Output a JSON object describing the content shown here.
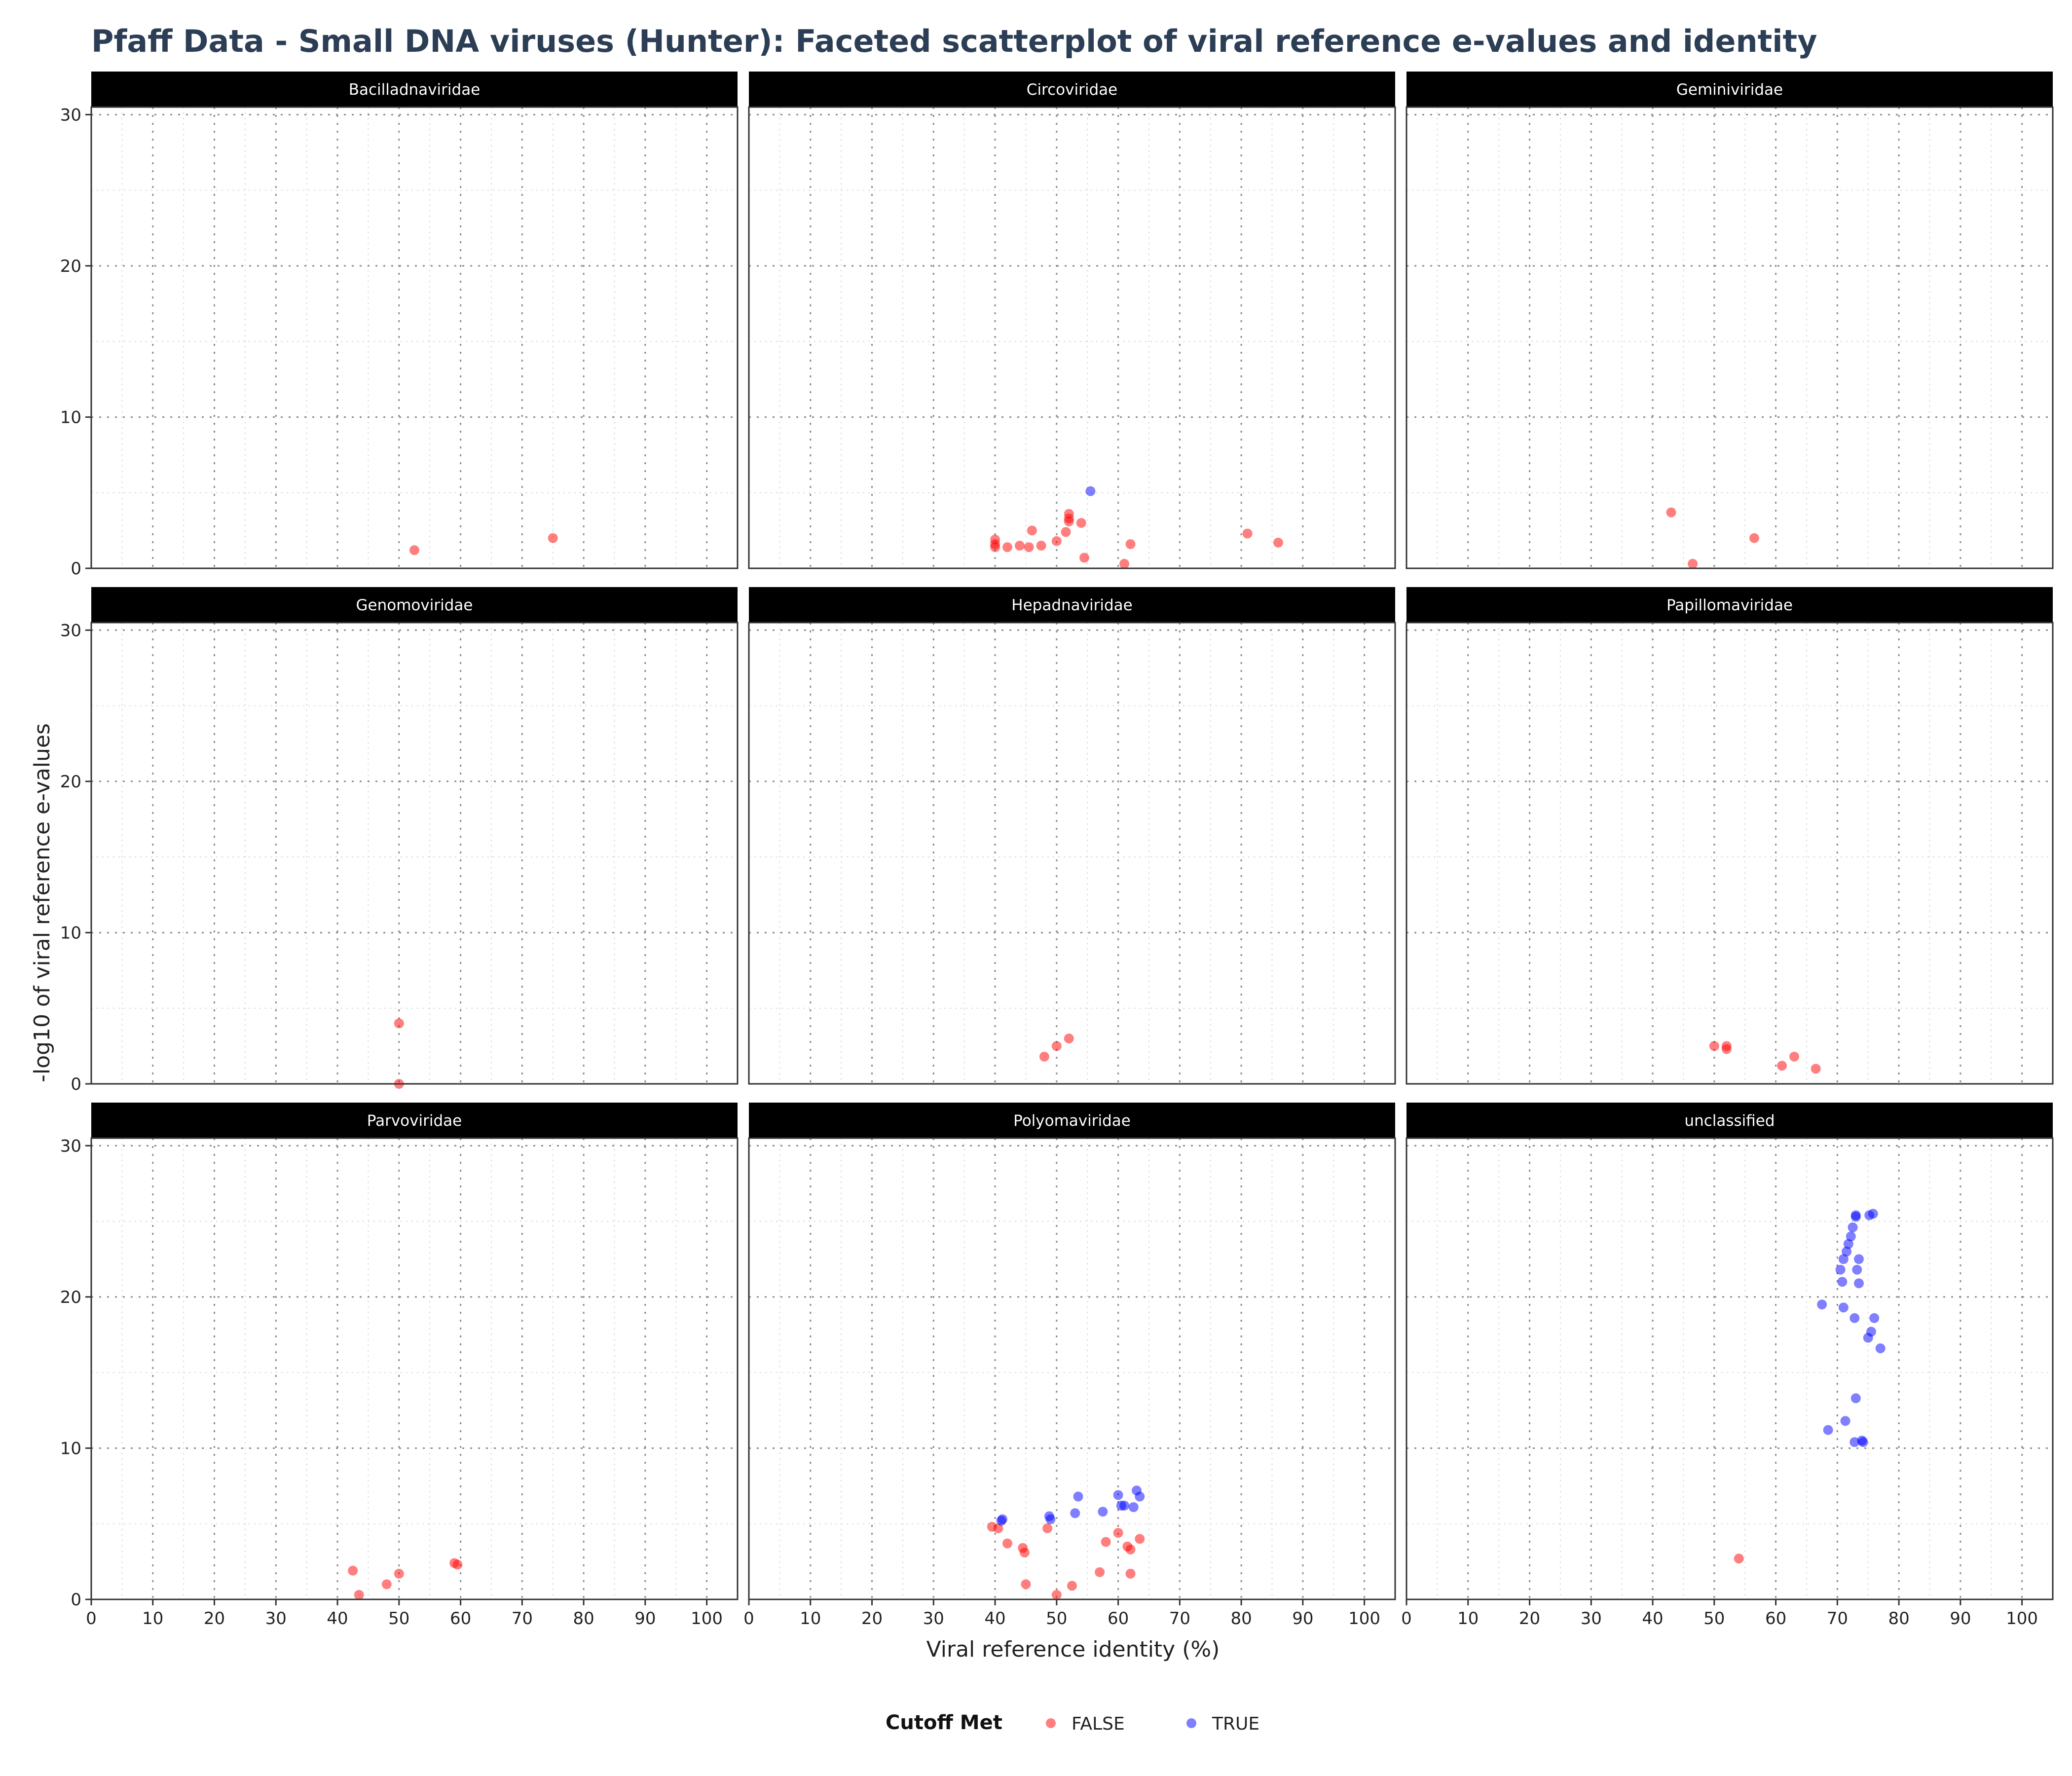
{
  "chart_data": {
    "type": "scatter",
    "title": "Pfaff Data - Small DNA viruses (Hunter): Faceted scatterplot of viral reference e-values and identity",
    "xlabel": "Viral reference identity (%)",
    "ylabel": "-log10 of viral reference e-values",
    "xlim": [
      0,
      105
    ],
    "ylim": [
      0,
      30.5
    ],
    "x_ticks": [
      "0",
      "10",
      "20",
      "30",
      "40",
      "50",
      "60",
      "70",
      "80",
      "90",
      "100"
    ],
    "y_ticks": [
      "0",
      "10",
      "20",
      "30"
    ],
    "grid": true,
    "legend": {
      "title": "Cutoff Met",
      "position": "bottom",
      "entries": [
        {
          "key": "FALSE",
          "label": "FALSE",
          "color": "#ff0000"
        },
        {
          "key": "TRUE",
          "label": "TRUE",
          "color": "#0000ff"
        }
      ]
    },
    "facets": [
      {
        "name": "Bacilladnaviridae",
        "points": [
          {
            "x": 52.5,
            "y": 1.2,
            "cutoff": "FALSE"
          },
          {
            "x": 75.0,
            "y": 2.0,
            "cutoff": "FALSE"
          }
        ]
      },
      {
        "name": "Circoviridae",
        "points": [
          {
            "x": 40.0,
            "y": 1.9,
            "cutoff": "FALSE"
          },
          {
            "x": 40.0,
            "y": 1.6,
            "cutoff": "FALSE"
          },
          {
            "x": 40.0,
            "y": 1.4,
            "cutoff": "FALSE"
          },
          {
            "x": 42.0,
            "y": 1.4,
            "cutoff": "FALSE"
          },
          {
            "x": 44.0,
            "y": 1.5,
            "cutoff": "FALSE"
          },
          {
            "x": 45.5,
            "y": 1.4,
            "cutoff": "FALSE"
          },
          {
            "x": 46.0,
            "y": 2.5,
            "cutoff": "FALSE"
          },
          {
            "x": 47.5,
            "y": 1.5,
            "cutoff": "FALSE"
          },
          {
            "x": 50.0,
            "y": 1.8,
            "cutoff": "FALSE"
          },
          {
            "x": 51.5,
            "y": 2.4,
            "cutoff": "FALSE"
          },
          {
            "x": 52.0,
            "y": 3.6,
            "cutoff": "FALSE"
          },
          {
            "x": 52.0,
            "y": 3.3,
            "cutoff": "FALSE"
          },
          {
            "x": 52.0,
            "y": 3.1,
            "cutoff": "FALSE"
          },
          {
            "x": 54.0,
            "y": 3.0,
            "cutoff": "FALSE"
          },
          {
            "x": 54.5,
            "y": 0.7,
            "cutoff": "FALSE"
          },
          {
            "x": 55.5,
            "y": 5.1,
            "cutoff": "TRUE"
          },
          {
            "x": 61.0,
            "y": 0.3,
            "cutoff": "FALSE"
          },
          {
            "x": 62.0,
            "y": 1.6,
            "cutoff": "FALSE"
          },
          {
            "x": 81.0,
            "y": 2.3,
            "cutoff": "FALSE"
          },
          {
            "x": 86.0,
            "y": 1.7,
            "cutoff": "FALSE"
          }
        ]
      },
      {
        "name": "Geminiviridae",
        "points": [
          {
            "x": 43.0,
            "y": 3.7,
            "cutoff": "FALSE"
          },
          {
            "x": 46.5,
            "y": 0.3,
            "cutoff": "FALSE"
          },
          {
            "x": 56.5,
            "y": 2.0,
            "cutoff": "FALSE"
          }
        ]
      },
      {
        "name": "Genomoviridae",
        "points": [
          {
            "x": 50.0,
            "y": 4.0,
            "cutoff": "FALSE"
          },
          {
            "x": 50.0,
            "y": 0.0,
            "cutoff": "FALSE"
          }
        ]
      },
      {
        "name": "Hepadnaviridae",
        "points": [
          {
            "x": 48.0,
            "y": 1.8,
            "cutoff": "FALSE"
          },
          {
            "x": 50.0,
            "y": 2.5,
            "cutoff": "FALSE"
          },
          {
            "x": 52.0,
            "y": 3.0,
            "cutoff": "FALSE"
          }
        ]
      },
      {
        "name": "Papillomaviridae",
        "points": [
          {
            "x": 50.0,
            "y": 2.5,
            "cutoff": "FALSE"
          },
          {
            "x": 52.0,
            "y": 2.5,
            "cutoff": "FALSE"
          },
          {
            "x": 52.0,
            "y": 2.3,
            "cutoff": "FALSE"
          },
          {
            "x": 61.0,
            "y": 1.2,
            "cutoff": "FALSE"
          },
          {
            "x": 63.0,
            "y": 1.8,
            "cutoff": "FALSE"
          },
          {
            "x": 66.5,
            "y": 1.0,
            "cutoff": "FALSE"
          }
        ]
      },
      {
        "name": "Parvoviridae",
        "points": [
          {
            "x": 42.5,
            "y": 1.9,
            "cutoff": "FALSE"
          },
          {
            "x": 43.5,
            "y": 0.3,
            "cutoff": "FALSE"
          },
          {
            "x": 48.0,
            "y": 1.0,
            "cutoff": "FALSE"
          },
          {
            "x": 50.0,
            "y": 1.7,
            "cutoff": "FALSE"
          },
          {
            "x": 59.0,
            "y": 2.4,
            "cutoff": "FALSE"
          },
          {
            "x": 59.5,
            "y": 2.3,
            "cutoff": "FALSE"
          }
        ]
      },
      {
        "name": "Polyomaviridae",
        "points": [
          {
            "x": 39.5,
            "y": 4.8,
            "cutoff": "FALSE"
          },
          {
            "x": 40.5,
            "y": 4.7,
            "cutoff": "FALSE"
          },
          {
            "x": 41.0,
            "y": 5.2,
            "cutoff": "TRUE"
          },
          {
            "x": 41.2,
            "y": 5.3,
            "cutoff": "TRUE"
          },
          {
            "x": 42.0,
            "y": 3.7,
            "cutoff": "FALSE"
          },
          {
            "x": 44.5,
            "y": 3.4,
            "cutoff": "FALSE"
          },
          {
            "x": 44.8,
            "y": 3.1,
            "cutoff": "FALSE"
          },
          {
            "x": 45.0,
            "y": 1.0,
            "cutoff": "FALSE"
          },
          {
            "x": 48.5,
            "y": 4.7,
            "cutoff": "FALSE"
          },
          {
            "x": 48.8,
            "y": 5.5,
            "cutoff": "TRUE"
          },
          {
            "x": 49.0,
            "y": 5.3,
            "cutoff": "TRUE"
          },
          {
            "x": 50.0,
            "y": 0.3,
            "cutoff": "FALSE"
          },
          {
            "x": 52.5,
            "y": 0.9,
            "cutoff": "FALSE"
          },
          {
            "x": 53.0,
            "y": 5.7,
            "cutoff": "TRUE"
          },
          {
            "x": 53.5,
            "y": 6.8,
            "cutoff": "TRUE"
          },
          {
            "x": 57.0,
            "y": 1.8,
            "cutoff": "FALSE"
          },
          {
            "x": 57.5,
            "y": 5.8,
            "cutoff": "TRUE"
          },
          {
            "x": 58.0,
            "y": 3.8,
            "cutoff": "FALSE"
          },
          {
            "x": 60.0,
            "y": 4.4,
            "cutoff": "FALSE"
          },
          {
            "x": 60.0,
            "y": 6.9,
            "cutoff": "TRUE"
          },
          {
            "x": 60.5,
            "y": 6.2,
            "cutoff": "TRUE"
          },
          {
            "x": 61.0,
            "y": 6.2,
            "cutoff": "TRUE"
          },
          {
            "x": 61.5,
            "y": 3.5,
            "cutoff": "FALSE"
          },
          {
            "x": 62.0,
            "y": 3.3,
            "cutoff": "FALSE"
          },
          {
            "x": 62.0,
            "y": 1.7,
            "cutoff": "FALSE"
          },
          {
            "x": 62.5,
            "y": 6.1,
            "cutoff": "TRUE"
          },
          {
            "x": 63.0,
            "y": 7.2,
            "cutoff": "TRUE"
          },
          {
            "x": 63.5,
            "y": 4.0,
            "cutoff": "FALSE"
          },
          {
            "x": 63.5,
            "y": 6.8,
            "cutoff": "TRUE"
          }
        ]
      },
      {
        "name": "unclassified",
        "points": [
          {
            "x": 54.0,
            "y": 2.7,
            "cutoff": "FALSE"
          },
          {
            "x": 67.5,
            "y": 19.5,
            "cutoff": "TRUE"
          },
          {
            "x": 68.5,
            "y": 11.2,
            "cutoff": "TRUE"
          },
          {
            "x": 70.5,
            "y": 21.8,
            "cutoff": "TRUE"
          },
          {
            "x": 70.8,
            "y": 21.0,
            "cutoff": "TRUE"
          },
          {
            "x": 71.0,
            "y": 22.5,
            "cutoff": "TRUE"
          },
          {
            "x": 71.0,
            "y": 19.3,
            "cutoff": "TRUE"
          },
          {
            "x": 71.3,
            "y": 11.8,
            "cutoff": "TRUE"
          },
          {
            "x": 71.5,
            "y": 23.0,
            "cutoff": "TRUE"
          },
          {
            "x": 71.8,
            "y": 23.5,
            "cutoff": "TRUE"
          },
          {
            "x": 72.2,
            "y": 24.0,
            "cutoff": "TRUE"
          },
          {
            "x": 72.5,
            "y": 24.6,
            "cutoff": "TRUE"
          },
          {
            "x": 72.8,
            "y": 18.6,
            "cutoff": "TRUE"
          },
          {
            "x": 72.8,
            "y": 10.4,
            "cutoff": "TRUE"
          },
          {
            "x": 73.0,
            "y": 25.4,
            "cutoff": "TRUE"
          },
          {
            "x": 73.0,
            "y": 25.3,
            "cutoff": "TRUE"
          },
          {
            "x": 73.0,
            "y": 13.3,
            "cutoff": "TRUE"
          },
          {
            "x": 73.2,
            "y": 21.8,
            "cutoff": "TRUE"
          },
          {
            "x": 73.5,
            "y": 22.5,
            "cutoff": "TRUE"
          },
          {
            "x": 73.5,
            "y": 20.9,
            "cutoff": "TRUE"
          },
          {
            "x": 74.0,
            "y": 10.5,
            "cutoff": "TRUE"
          },
          {
            "x": 74.2,
            "y": 10.4,
            "cutoff": "TRUE"
          },
          {
            "x": 75.0,
            "y": 17.3,
            "cutoff": "TRUE"
          },
          {
            "x": 75.2,
            "y": 25.4,
            "cutoff": "TRUE"
          },
          {
            "x": 75.5,
            "y": 17.7,
            "cutoff": "TRUE"
          },
          {
            "x": 75.8,
            "y": 25.5,
            "cutoff": "TRUE"
          },
          {
            "x": 76.0,
            "y": 18.6,
            "cutoff": "TRUE"
          },
          {
            "x": 77.0,
            "y": 16.6,
            "cutoff": "TRUE"
          }
        ]
      }
    ]
  }
}
